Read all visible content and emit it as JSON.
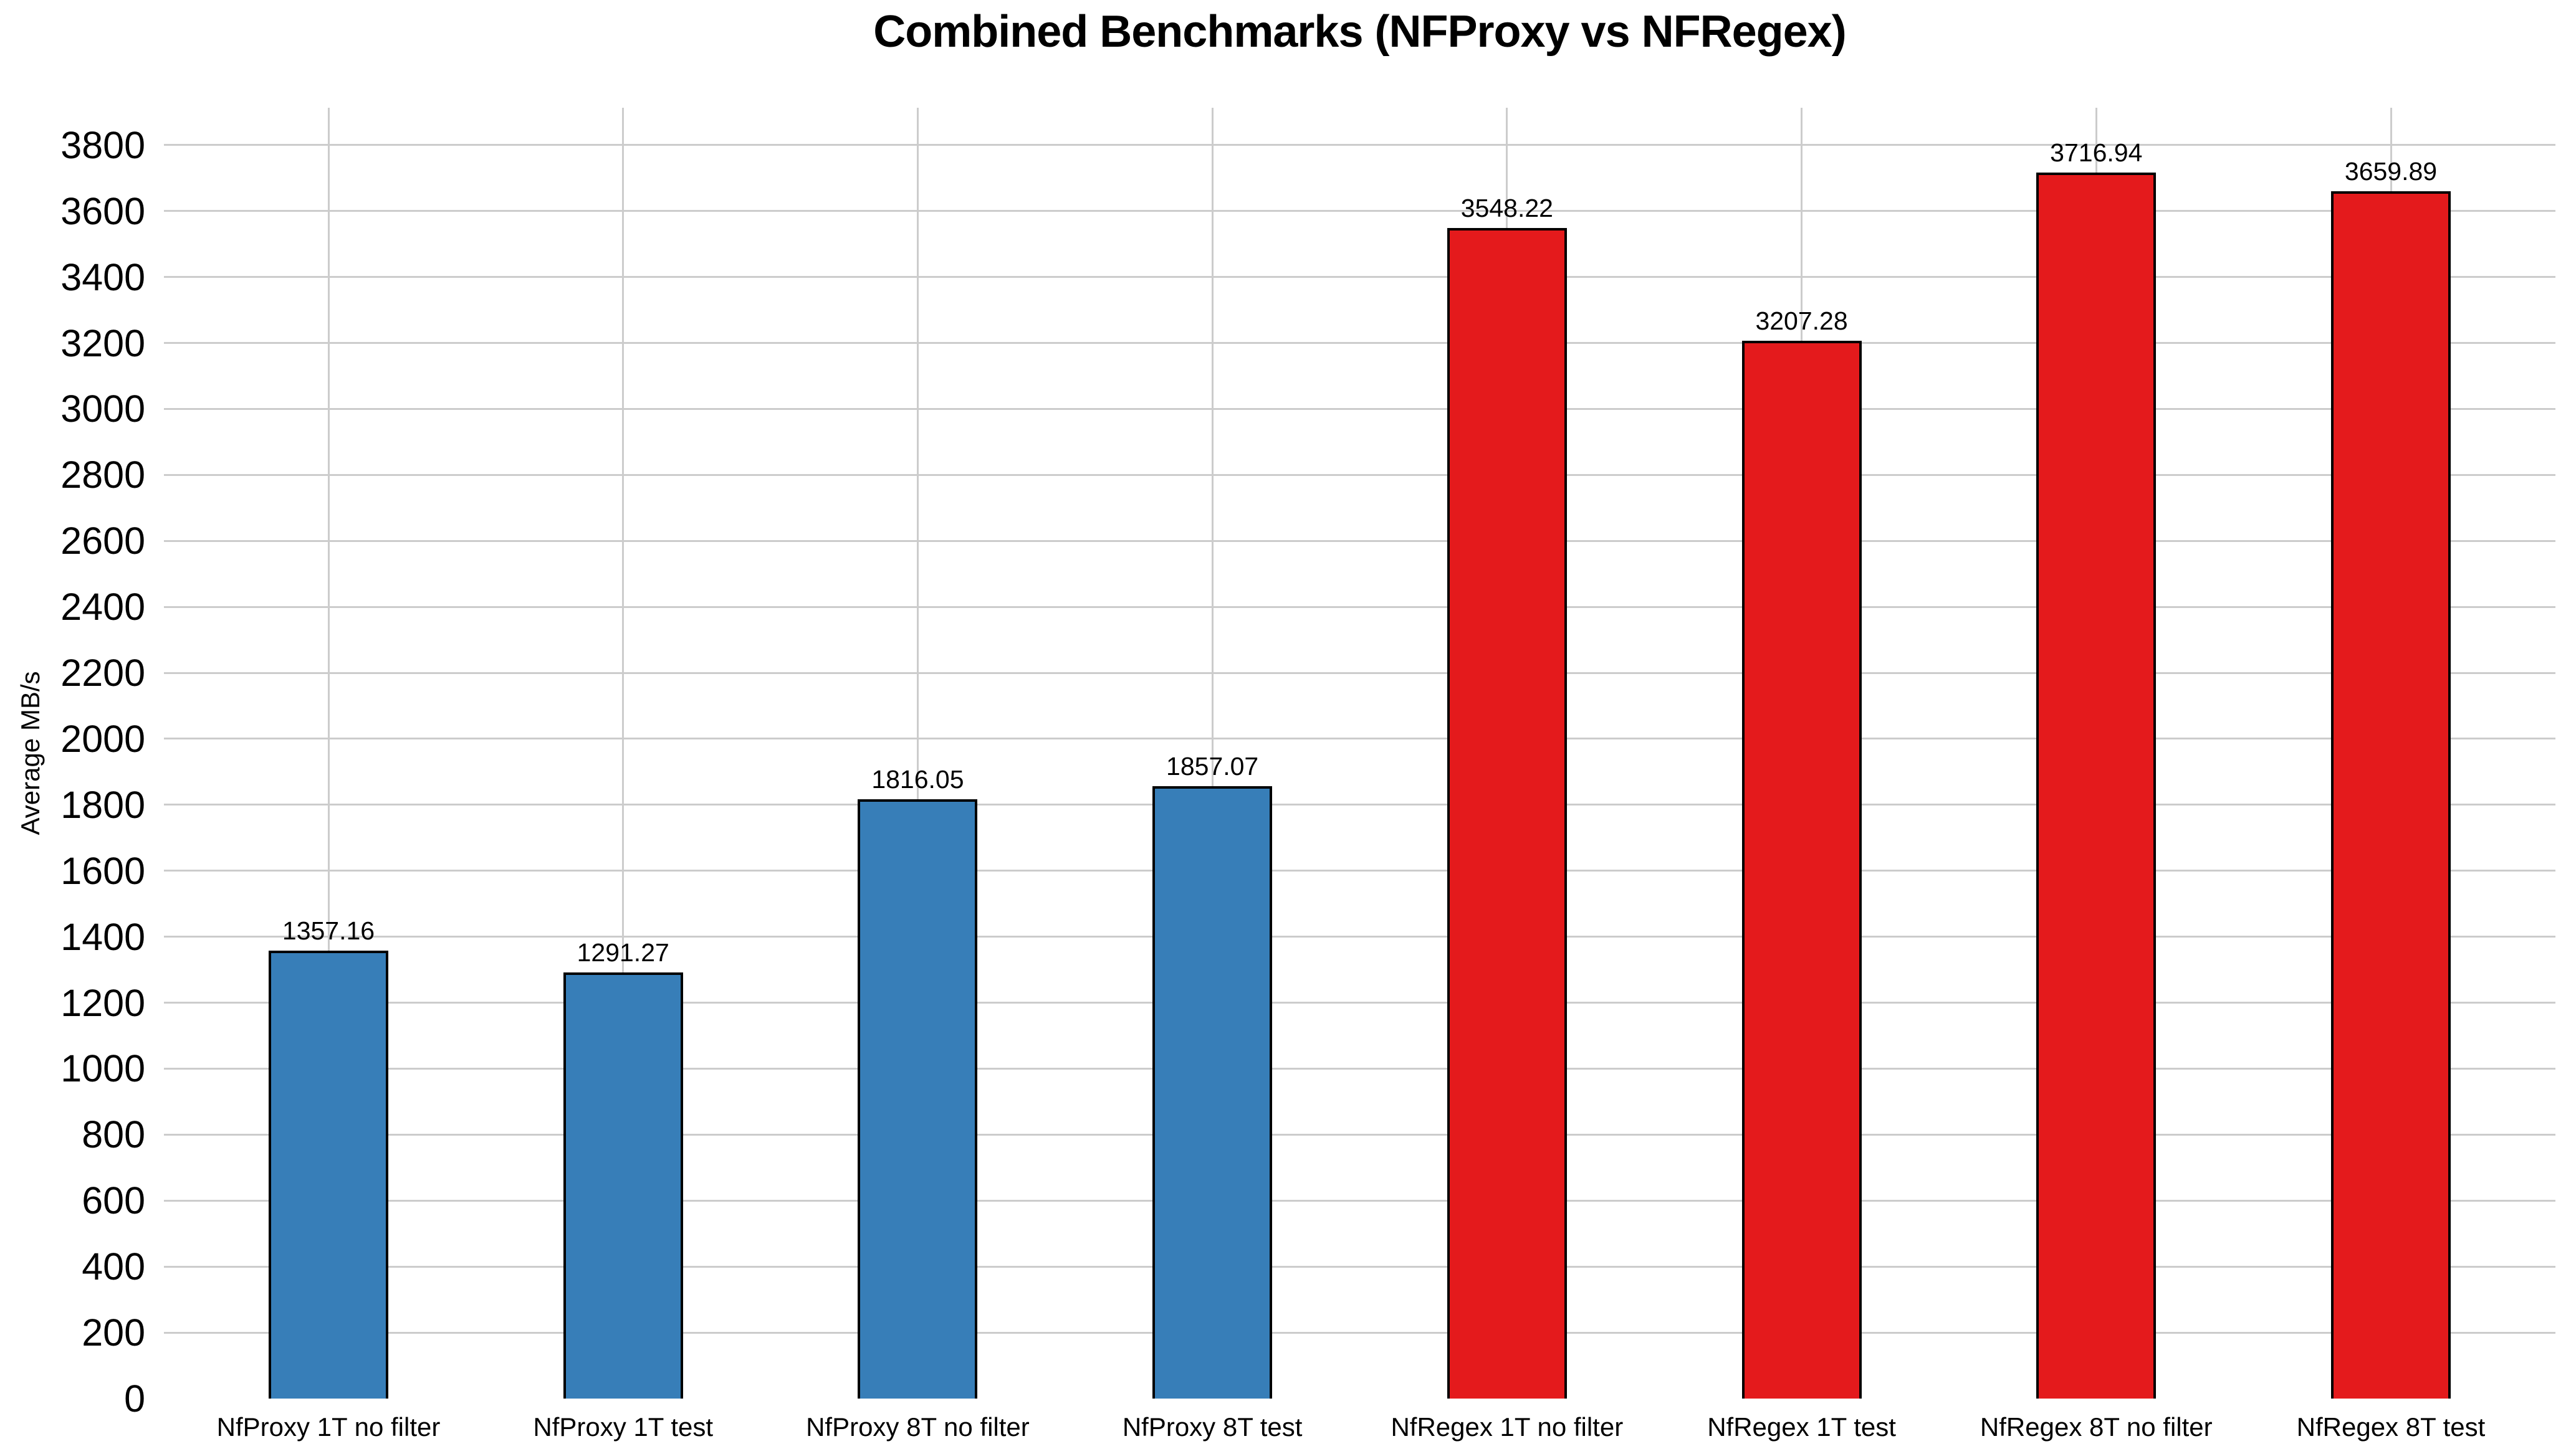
{
  "chart_data": {
    "type": "bar",
    "title": "Combined Benchmarks (NFProxy vs NFRegex)",
    "xlabel": "",
    "ylabel": "Average MB/s",
    "categories": [
      "NfProxy 1T no filter",
      "NfProxy 1T test",
      "NfProxy 8T no filter",
      "NfProxy 8T test",
      "NfRegex 1T no filter",
      "NfRegex 1T test",
      "NfRegex 8T no filter",
      "NfRegex 8T test"
    ],
    "values": [
      1357.16,
      1291.27,
      1816.05,
      1857.07,
      3548.22,
      3207.28,
      3716.94,
      3659.89
    ],
    "value_labels": [
      "1357.16",
      "1291.27",
      "1816.05",
      "1857.07",
      "3548.22",
      "3207.28",
      "3716.94",
      "3659.89"
    ],
    "bar_colors": [
      "#377eb8",
      "#377eb8",
      "#377eb8",
      "#377eb8",
      "#e41a1c",
      "#e41a1c",
      "#e41a1c",
      "#e41a1c"
    ],
    "series_colors": {
      "NfProxy": "#377eb8",
      "NfRegex": "#e41a1c"
    },
    "bar_edge_color": "#000000",
    "grid": true,
    "grid_color": "#cccccc",
    "background_color": "#ffffff",
    "legend": "none",
    "yticks": [
      0,
      200,
      400,
      600,
      800,
      1000,
      1200,
      1400,
      1600,
      1800,
      2000,
      2200,
      2400,
      2600,
      2800,
      3000,
      3200,
      3400,
      3600,
      3800
    ],
    "ylim": [
      0,
      3913
    ]
  }
}
